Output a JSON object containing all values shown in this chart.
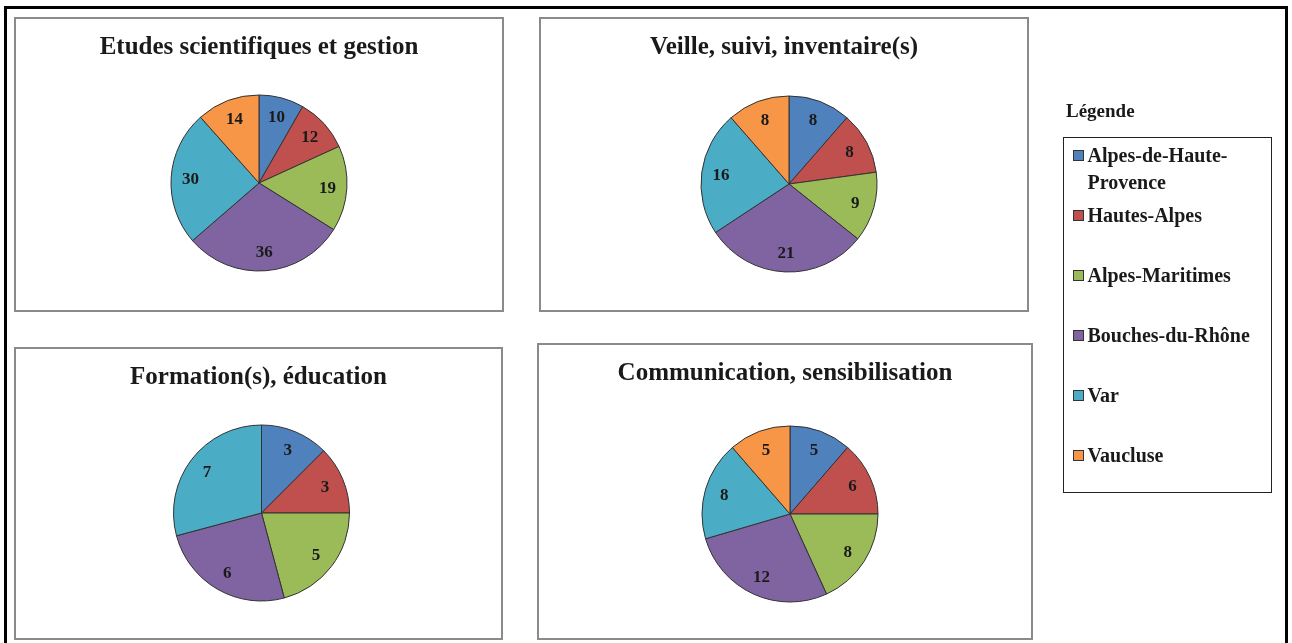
{
  "chart_data": [
    {
      "type": "pie",
      "title": "Etudes scientifiques et gestion",
      "categories": [
        "Alpes-de-Haute-Provence",
        "Hautes-Alpes",
        "Alpes-Maritimes",
        "Bouches-du-Rhône",
        "Var",
        "Vaucluse"
      ],
      "values": [
        10,
        12,
        19,
        36,
        30,
        14
      ],
      "colors": [
        "#4f81bd",
        "#c0504d",
        "#9bbb59",
        "#8064a2",
        "#4bacc6",
        "#f79646"
      ],
      "data_labels": true,
      "legend": "right",
      "legend_title": "Légende"
    },
    {
      "type": "pie",
      "title": "Veille, suivi, inventaire(s)",
      "categories": [
        null,
        null,
        null,
        null,
        null,
        null
      ],
      "values": [
        8,
        8,
        9,
        21,
        16,
        8
      ],
      "colors": [
        "#4f81bd",
        "#c0504d",
        "#9bbb59",
        "#8064a2",
        "#4bacc6",
        "#f79646"
      ],
      "data_labels": true
    },
    {
      "type": "pie",
      "title": "Formation(s), éducation",
      "categories": [
        null,
        null,
        null,
        null,
        null,
        null
      ],
      "values": [
        3,
        3,
        5,
        6,
        7,
        null
      ],
      "colors": [
        "#4f81bd",
        "#c0504d",
        "#9bbb59",
        "#8064a2",
        "#4bacc6",
        "#f79646"
      ],
      "data_labels": true
    },
    {
      "type": "pie",
      "title": "Communication, sensibilisation",
      "categories": [
        null,
        null,
        null,
        null,
        null,
        null
      ],
      "values": [
        5,
        6,
        8,
        12,
        8,
        5
      ],
      "colors": [
        "#4f81bd",
        "#c0504d",
        "#9bbb59",
        "#8064a2",
        "#4bacc6",
        "#f79646"
      ],
      "data_labels": true
    }
  ]
}
